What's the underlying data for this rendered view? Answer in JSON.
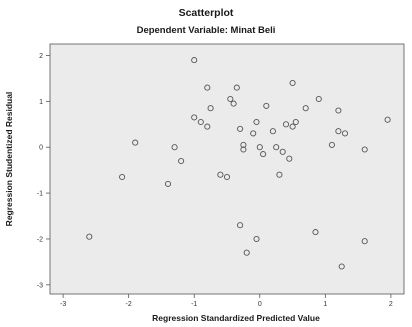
{
  "chart_data": {
    "type": "scatter",
    "title": "Scatterplot",
    "subtitle": "Dependent Variable: Minat Beli",
    "xlabel": "Regression Standardized Predicted Value",
    "ylabel": "Regression Studentized Residual",
    "xlim": [
      -3,
      2
    ],
    "ylim": [
      -3,
      2
    ],
    "xticks": [
      "-3",
      "-2",
      "-1",
      "0",
      "1",
      "2"
    ],
    "yticks": [
      "2",
      "1",
      "0",
      "-1",
      "-2",
      "-3"
    ],
    "grid": false,
    "colors": {
      "plot_background": "#ebebeb",
      "marker_stroke": "#555555",
      "axis": "#555555"
    },
    "x": [
      -2.6,
      -2.1,
      -1.9,
      -1.4,
      -1.3,
      -1.2,
      -1.0,
      -1.0,
      -0.9,
      -0.8,
      -0.8,
      -0.75,
      -0.6,
      -0.5,
      -0.45,
      -0.4,
      -0.35,
      -0.3,
      -0.3,
      -0.25,
      -0.25,
      -0.2,
      -0.1,
      -0.05,
      -0.05,
      0.0,
      0.05,
      0.1,
      0.2,
      0.25,
      0.3,
      0.35,
      0.4,
      0.45,
      0.5,
      0.5,
      0.55,
      0.7,
      0.85,
      0.9,
      1.1,
      1.2,
      1.2,
      1.25,
      1.3,
      1.6,
      1.6,
      1.95
    ],
    "y": [
      -1.95,
      -0.65,
      0.1,
      -0.8,
      0.0,
      -0.3,
      1.9,
      0.65,
      0.55,
      1.3,
      0.45,
      0.85,
      -0.6,
      -0.65,
      1.05,
      0.95,
      1.3,
      0.4,
      -1.7,
      0.05,
      -0.05,
      -2.3,
      0.3,
      0.55,
      -2.0,
      0.0,
      -0.15,
      0.9,
      0.35,
      0.0,
      -0.6,
      -0.1,
      0.5,
      -0.25,
      0.45,
      1.4,
      0.55,
      0.85,
      -1.85,
      1.05,
      0.05,
      0.8,
      0.35,
      -2.6,
      0.3,
      -0.05,
      -2.05,
      0.6
    ]
  }
}
